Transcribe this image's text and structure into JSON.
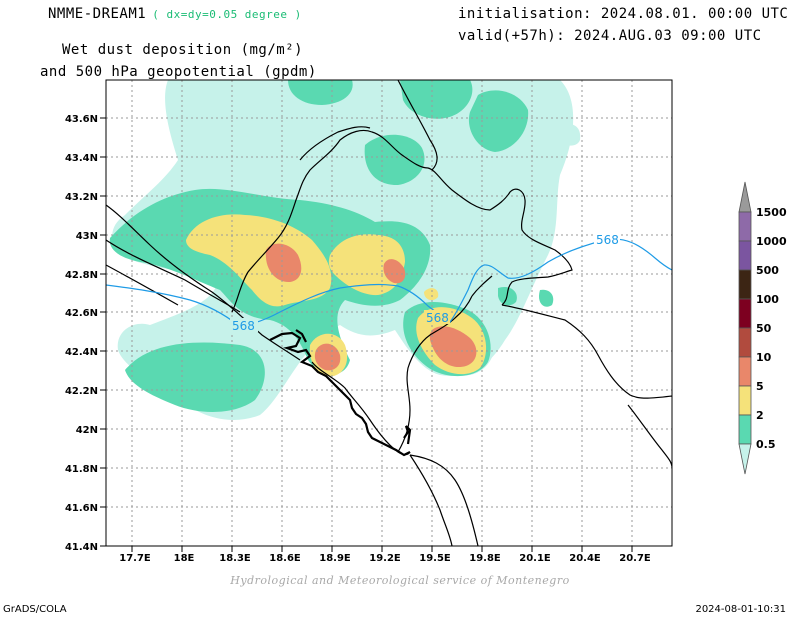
{
  "header": {
    "model": "NMME-DREAM1",
    "resolution": "( dx=dy=0.05 degree )",
    "initialisation": "initialisation: 2024.08.01. 00:00 UTC",
    "valid": "valid(+57h): 2024.AUG.03 09:00 UTC",
    "title_line1": "Wet dust deposition (mg/m²)",
    "title_line2": "and 500 hPa geopotential (gpdm)"
  },
  "map": {
    "lat_labels": [
      "43.6N",
      "43.4N",
      "43.2N",
      "43N",
      "42.8N",
      "42.6N",
      "42.4N",
      "42.2N",
      "42N",
      "41.8N",
      "41.6N",
      "41.4N"
    ],
    "lon_labels": [
      "17.7E",
      "18E",
      "18.3E",
      "18.6E",
      "18.9E",
      "19.2E",
      "19.5E",
      "19.8E",
      "20.1E",
      "20.4E",
      "20.7E"
    ],
    "contour_labels": [
      "568",
      "568",
      "568"
    ],
    "contour_color": "#1e9be6",
    "grid": true
  },
  "legend": {
    "levels": [
      "1500",
      "1000",
      "500",
      "100",
      "50",
      "10",
      "5",
      "2",
      "0.5"
    ],
    "colors": [
      "#8e6aa8",
      "#7b55a0",
      "#3c2514",
      "#7d0020",
      "#b14b3e",
      "#e9876a",
      "#f5e27a",
      "#5ad9b1",
      "#c6f2ea"
    ]
  },
  "credit": "Hydrological and Meteorological service of Montenegro",
  "footer": {
    "left": "GrADS/COLA",
    "right": "2024-08-01-10:31"
  }
}
